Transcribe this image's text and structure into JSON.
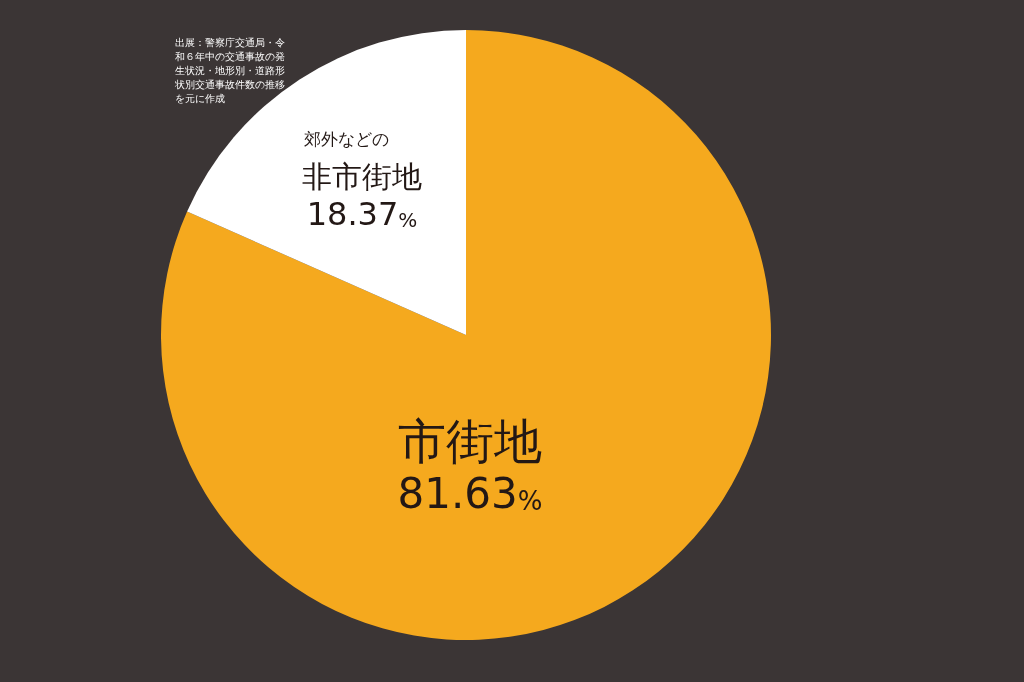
{
  "chart_data": {
    "type": "pie",
    "categories": [
      "市街地",
      "非市街地"
    ],
    "values": [
      81.63,
      18.37
    ],
    "value_labels": [
      "81.63%",
      "18.37%"
    ],
    "colors": [
      "#f5a91e",
      "#ffffff"
    ],
    "legend": false,
    "annotations": [
      "出展：警察庁交通局・令和６年中の交通事故の発生状況・地形別・道路形状別交通事故件数の推移を元に作成",
      "郊外などの"
    ]
  }
}
